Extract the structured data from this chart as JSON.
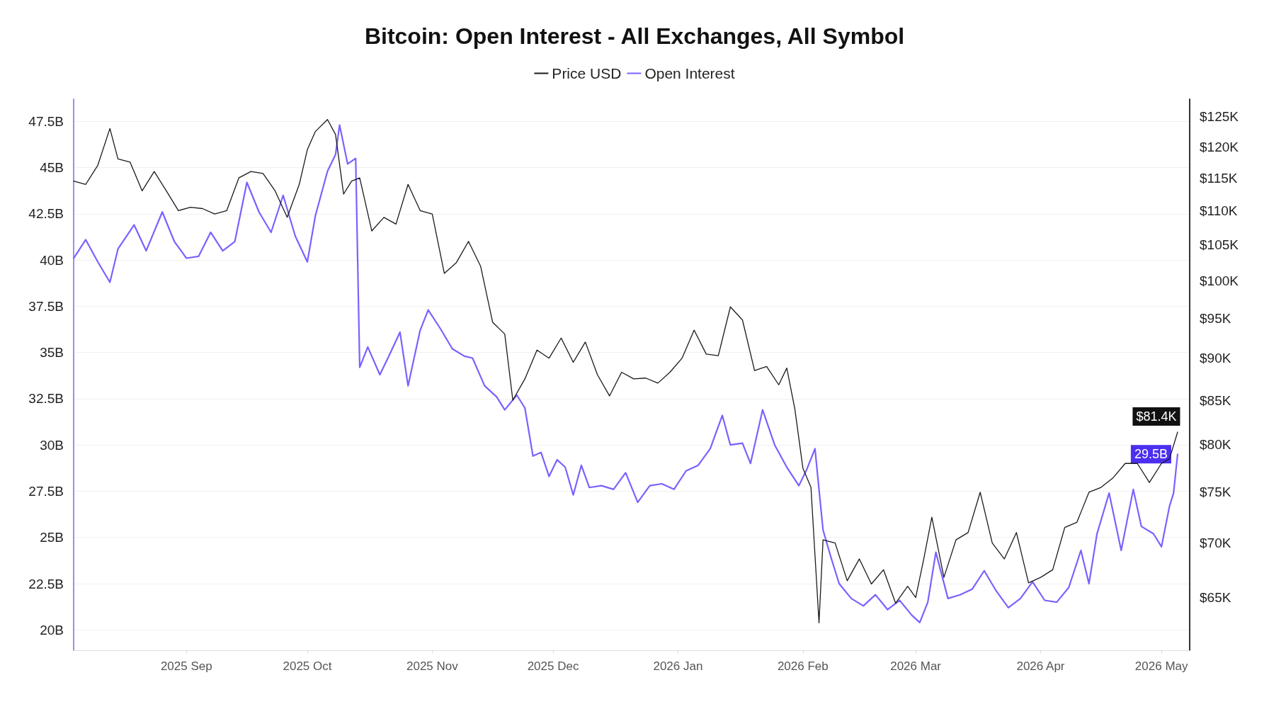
{
  "chart_data": {
    "type": "line",
    "title": "Bitcoin: Open Interest - All Exchanges, All Symbol",
    "x": [
      "2025-08-04",
      "2025-08-07",
      "2025-08-10",
      "2025-08-13",
      "2025-08-15",
      "2025-08-18",
      "2025-08-21",
      "2025-08-24",
      "2025-08-27",
      "2025-08-30",
      "2025-09-02",
      "2025-09-05",
      "2025-09-08",
      "2025-09-11",
      "2025-09-14",
      "2025-09-17",
      "2025-09-20",
      "2025-09-23",
      "2025-09-26",
      "2025-09-29",
      "2025-10-01",
      "2025-10-03",
      "2025-10-06",
      "2025-10-08",
      "2025-10-10",
      "2025-10-12",
      "2025-10-14",
      "2025-10-17",
      "2025-10-20",
      "2025-10-23",
      "2025-10-26",
      "2025-10-29",
      "2025-11-01",
      "2025-11-04",
      "2025-11-07",
      "2025-11-10",
      "2025-11-13",
      "2025-11-16",
      "2025-11-19",
      "2025-11-21",
      "2025-11-24",
      "2025-11-27",
      "2025-11-30",
      "2025-12-03",
      "2025-12-06",
      "2025-12-09",
      "2025-12-12",
      "2025-12-15",
      "2025-12-18",
      "2025-12-21",
      "2025-12-24",
      "2025-12-27",
      "2025-12-30",
      "2026-01-02",
      "2026-01-05",
      "2026-01-08",
      "2026-01-11",
      "2026-01-14",
      "2026-01-17",
      "2026-01-20",
      "2026-01-23",
      "2026-01-26",
      "2026-01-28",
      "2026-01-30",
      "2026-02-01",
      "2026-02-03",
      "2026-02-05",
      "2026-02-06",
      "2026-02-09",
      "2026-02-12",
      "2026-02-15",
      "2026-02-18",
      "2026-02-21",
      "2026-02-24",
      "2026-02-27",
      "2026-03-01",
      "2026-03-03",
      "2026-03-05",
      "2026-03-08",
      "2026-03-11",
      "2026-03-14",
      "2026-03-17",
      "2026-03-20",
      "2026-03-23",
      "2026-03-26",
      "2026-03-29",
      "2026-04-01",
      "2026-04-04",
      "2026-04-07",
      "2026-04-10",
      "2026-04-13",
      "2026-04-16",
      "2026-04-19",
      "2026-04-22",
      "2026-04-25",
      "2026-04-28",
      "2026-05-01",
      "2026-05-03",
      "2026-05-05"
    ],
    "series": [
      {
        "name": "Price USD",
        "color": "#1a1a1a",
        "axis": "y2",
        "value_labels": [
          null,
          null,
          null,
          null,
          null,
          null,
          null,
          null,
          null,
          null,
          null,
          null,
          null,
          null,
          null,
          null,
          null,
          null,
          null,
          null,
          null,
          null,
          null,
          null,
          null,
          null,
          null,
          null,
          null,
          null,
          null,
          null,
          null,
          null,
          null,
          null,
          null,
          null,
          null,
          null,
          null,
          null,
          null,
          null,
          null,
          null,
          null,
          null,
          null,
          null,
          null,
          null,
          null,
          null,
          null,
          null,
          null,
          null,
          null,
          null,
          null,
          null,
          null,
          null,
          null,
          null,
          null,
          null,
          null,
          null,
          null,
          null,
          null,
          null,
          null,
          null,
          null,
          null,
          null,
          null,
          null,
          null,
          null,
          null,
          null,
          null,
          null,
          null,
          null,
          null,
          null,
          null,
          null,
          null,
          null,
          null,
          null,
          null,
          "$81.4K"
        ],
        "values": [
          114.5,
          114,
          117,
          123,
          118,
          117.5,
          113,
          116,
          113,
          110,
          110.5,
          110.3,
          109.5,
          110,
          115,
          116,
          115.7,
          113,
          109,
          114,
          119.5,
          122.5,
          124.5,
          122,
          112.5,
          114.5,
          115,
          107,
          109,
          108,
          114,
          110,
          109.5,
          101,
          102.5,
          105.5,
          102,
          94.5,
          93,
          85,
          87.5,
          91,
          90,
          92.5,
          89.5,
          92,
          88,
          85.5,
          88.3,
          87.5,
          87.6,
          87,
          88.3,
          90,
          93.5,
          90.5,
          90.3,
          96.5,
          94.8,
          88.5,
          89,
          86.8,
          88.8,
          84,
          77.5,
          75.5,
          62.8,
          70.3,
          70,
          66.5,
          68.5,
          66.2,
          67.5,
          64.5,
          66,
          65,
          68.5,
          72.5,
          66.8,
          70.3,
          71,
          75,
          70,
          68.5,
          71,
          66.3,
          66.8,
          67.5,
          71.5,
          72,
          75,
          75.5,
          76.5,
          78,
          78,
          76,
          78,
          78.5,
          81.4
        ]
      },
      {
        "name": "Open Interest",
        "color": "#7b61ff",
        "axis": "y",
        "value_labels": [
          null,
          null,
          null,
          null,
          null,
          null,
          null,
          null,
          null,
          null,
          null,
          null,
          null,
          null,
          null,
          null,
          null,
          null,
          null,
          null,
          null,
          null,
          null,
          null,
          null,
          null,
          null,
          null,
          null,
          null,
          null,
          null,
          null,
          null,
          null,
          null,
          null,
          null,
          null,
          null,
          null,
          null,
          null,
          null,
          null,
          null,
          null,
          null,
          null,
          null,
          null,
          null,
          null,
          null,
          null,
          null,
          null,
          null,
          null,
          null,
          null,
          null,
          null,
          null,
          null,
          null,
          null,
          null,
          null,
          null,
          null,
          null,
          null,
          null,
          null,
          null,
          null,
          null,
          null,
          null,
          null,
          null,
          null,
          null,
          null,
          null,
          null,
          null,
          null,
          null,
          null,
          null,
          null,
          null,
          null,
          null,
          null,
          null,
          null,
          null,
          null,
          null,
          null,
          null,
          null,
          "29.5B"
        ],
        "x": [
          "2025-08-04",
          "2025-08-07",
          "2025-08-10",
          "2025-08-13",
          "2025-08-15",
          "2025-08-19",
          "2025-08-22",
          "2025-08-26",
          "2025-08-29",
          "2025-09-01",
          "2025-09-04",
          "2025-09-07",
          "2025-09-10",
          "2025-09-13",
          "2025-09-16",
          "2025-09-19",
          "2025-09-22",
          "2025-09-25",
          "2025-09-28",
          "2025-10-01",
          "2025-10-03",
          "2025-10-06",
          "2025-10-08",
          "2025-10-09",
          "2025-10-11",
          "2025-10-13",
          "2025-10-14",
          "2025-10-16",
          "2025-10-19",
          "2025-10-21",
          "2025-10-24",
          "2025-10-26",
          "2025-10-29",
          "2025-10-31",
          "2025-11-03",
          "2025-11-06",
          "2025-11-09",
          "2025-11-11",
          "2025-11-14",
          "2025-11-17",
          "2025-11-19",
          "2025-11-22",
          "2025-11-24",
          "2025-11-26",
          "2025-11-28",
          "2025-11-30",
          "2025-12-02",
          "2025-12-04",
          "2025-12-06",
          "2025-12-08",
          "2025-12-10",
          "2025-12-13",
          "2025-12-16",
          "2025-12-19",
          "2025-12-22",
          "2025-12-25",
          "2025-12-28",
          "2025-12-31",
          "2026-01-03",
          "2026-01-06",
          "2026-01-09",
          "2026-01-12",
          "2026-01-14",
          "2026-01-17",
          "2026-01-19",
          "2026-01-22",
          "2026-01-25",
          "2026-01-28",
          "2026-01-31",
          "2026-02-02",
          "2026-02-04",
          "2026-02-06",
          "2026-02-08",
          "2026-02-10",
          "2026-02-13",
          "2026-02-16",
          "2026-02-19",
          "2026-02-22",
          "2026-02-25",
          "2026-02-28",
          "2026-03-02",
          "2026-03-04",
          "2026-03-06",
          "2026-03-09",
          "2026-03-12",
          "2026-03-15",
          "2026-03-18",
          "2026-03-21",
          "2026-03-24",
          "2026-03-27",
          "2026-03-30",
          "2026-04-02",
          "2026-04-05",
          "2026-04-08",
          "2026-04-11",
          "2026-04-13",
          "2026-04-15",
          "2026-04-18",
          "2026-04-21",
          "2026-04-24",
          "2026-04-26",
          "2026-04-29",
          "2026-05-01",
          "2026-05-03",
          "2026-05-04",
          "2026-05-05"
        ],
        "values": [
          40.1,
          41.1,
          39.9,
          38.8,
          40.6,
          41.9,
          40.5,
          42.6,
          41.0,
          40.1,
          40.2,
          41.5,
          40.5,
          41.0,
          44.2,
          42.6,
          41.5,
          43.5,
          41.3,
          39.9,
          42.4,
          44.8,
          45.7,
          47.3,
          45.2,
          45.5,
          34.2,
          35.3,
          33.8,
          34.7,
          36.1,
          33.2,
          36.2,
          37.3,
          36.3,
          35.2,
          34.8,
          34.7,
          33.2,
          32.6,
          31.9,
          32.7,
          32.0,
          29.4,
          29.6,
          28.3,
          29.2,
          28.8,
          27.3,
          28.9,
          27.7,
          27.8,
          27.6,
          28.5,
          26.9,
          27.8,
          27.9,
          27.6,
          28.6,
          28.9,
          29.8,
          31.6,
          30.0,
          30.1,
          29.0,
          31.9,
          30.0,
          28.8,
          27.8,
          28.7,
          29.8,
          25.4,
          23.9,
          22.5,
          21.7,
          21.3,
          21.9,
          21.1,
          21.6,
          20.8,
          20.4,
          21.5,
          24.2,
          21.7,
          21.9,
          22.2,
          23.2,
          22.1,
          21.2,
          21.7,
          22.6,
          21.6,
          21.5,
          22.3,
          24.3,
          22.5,
          25.2,
          27.4,
          24.3,
          27.6,
          25.6,
          25.2,
          24.5,
          26.7,
          27.4,
          29.5
        ]
      }
    ],
    "xlim": [
      "2025-08-04",
      "2026-05-08"
    ],
    "xticks": [
      {
        "value": "2025-09-01",
        "label": "2025 Sep"
      },
      {
        "value": "2025-10-01",
        "label": "2025 Oct"
      },
      {
        "value": "2025-11-01",
        "label": "2025 Nov"
      },
      {
        "value": "2025-12-01",
        "label": "2025 Dec"
      },
      {
        "value": "2026-01-01",
        "label": "2026 Jan"
      },
      {
        "value": "2026-02-01",
        "label": "2026 Feb"
      },
      {
        "value": "2026-03-01",
        "label": "2026 Mar"
      },
      {
        "value": "2026-04-01",
        "label": "2026 Apr"
      },
      {
        "value": "2026-05-01",
        "label": "2026 May"
      }
    ],
    "ylim": [
      18.9,
      48.7
    ],
    "yticks": [
      {
        "value": 20,
        "label": "20B"
      },
      {
        "value": 22.5,
        "label": "22.5B"
      },
      {
        "value": 25,
        "label": "25B"
      },
      {
        "value": 27.5,
        "label": "27.5B"
      },
      {
        "value": 30,
        "label": "30B"
      },
      {
        "value": 32.5,
        "label": "32.5B"
      },
      {
        "value": 35,
        "label": "35B"
      },
      {
        "value": 37.5,
        "label": "37.5B"
      },
      {
        "value": 40,
        "label": "40B"
      },
      {
        "value": 42.5,
        "label": "42.5B"
      },
      {
        "value": 45,
        "label": "45B"
      },
      {
        "value": 47.5,
        "label": "47.5B"
      }
    ],
    "y2lim": [
      60.5,
      128
    ],
    "y2ticks": [
      {
        "value": 65,
        "label": "$65K"
      },
      {
        "value": 70,
        "label": "$70K"
      },
      {
        "value": 75,
        "label": "$75K"
      },
      {
        "value": 80,
        "label": "$80K"
      },
      {
        "value": 85,
        "label": "$85K"
      },
      {
        "value": 90,
        "label": "$90K"
      },
      {
        "value": 95,
        "label": "$95K"
      },
      {
        "value": 100,
        "label": "$100K"
      },
      {
        "value": 105,
        "label": "$105K"
      },
      {
        "value": 110,
        "label": "$110K"
      },
      {
        "value": 115,
        "label": "$115K"
      },
      {
        "value": 120,
        "label": "$120K"
      },
      {
        "value": 125,
        "label": "$125K"
      }
    ],
    "log": "y2",
    "grid": "y",
    "legend": "top",
    "marker": "none",
    "line_style": "solid"
  }
}
